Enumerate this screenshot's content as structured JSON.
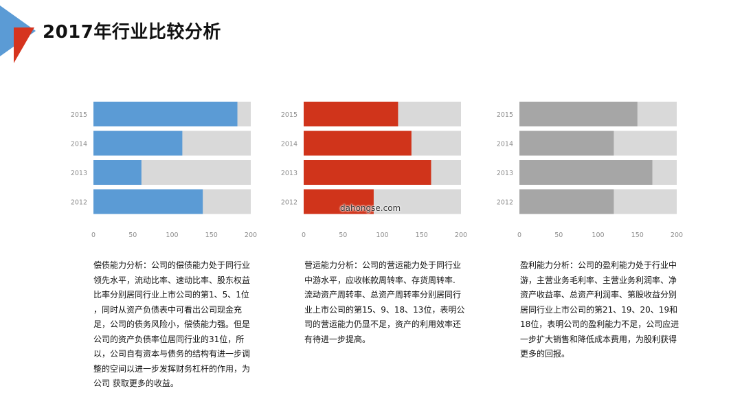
{
  "header": {
    "title": "2017年行业比较分析",
    "logo_colors": {
      "blue": "#5b9bd5",
      "red": "#d6341e"
    }
  },
  "watermark": "dahongse.com",
  "chart_data": [
    {
      "type": "bar",
      "orientation": "horizontal",
      "categories": [
        "2015",
        "2014",
        "2013",
        "2012"
      ],
      "values": [
        183,
        113,
        61,
        139
      ],
      "xlim": [
        0,
        200
      ],
      "xticks": [
        "0",
        "50",
        "100",
        "150",
        "200"
      ],
      "bar_color": "#5b9bd5",
      "track_color": "#d9d9d9",
      "grid": false,
      "legend": "none"
    },
    {
      "type": "bar",
      "orientation": "horizontal",
      "categories": [
        "2015",
        "2014",
        "2013",
        "2012"
      ],
      "values": [
        120,
        137,
        162,
        89
      ],
      "xlim": [
        0,
        200
      ],
      "xticks": [
        "0",
        "50",
        "100",
        "150",
        "200"
      ],
      "bar_color": "#d0341b",
      "track_color": "#d9d9d9",
      "grid": false,
      "legend": "none"
    },
    {
      "type": "bar",
      "orientation": "horizontal",
      "categories": [
        "2015",
        "2014",
        "2013",
        "2012"
      ],
      "values": [
        150,
        120,
        169,
        120
      ],
      "xlim": [
        0,
        200
      ],
      "xticks": [
        "0",
        "50",
        "100",
        "150",
        "200"
      ],
      "bar_color": "#a6a6a6",
      "track_color": "#d9d9d9",
      "grid": false,
      "legend": "none"
    }
  ],
  "descriptions": [
    "偿债能力分析：公司的偿债能力处于同行业领先水平，流动比率、速动比率、股东权益比率分别居同行业上市公司的第1、5、1位 ，同时从资产负债表中可看出公司现金充足，公司的债务风险小，偿债能力强。但是公司的资产负债率位居同行业的31位，所以，公司自有资本与债务的结构有进一步调整的空间以进一步发挥财务杠杆的作用，为公司 获取更多的收益。",
    "营运能力分析：公司的营运能力处于同行业中游水平，应收帐款周转率、存货周转率. 流动资产周转率、总资产周转率分别居同行业上市公司的第15、9、18、13位，表明公司的营运能力仍显不足，资产的利用效率还有待进一步提高。",
    "盈利能力分析：公司的盈利能力处于行业中游，主营业务毛利率、主营业务利润率、净资产收益率、总资产利润率、第股收益分别居同行业上市公司的第21、19、20、19和18位，表明公司的盈利能力不足，公司应进一步扩大销售和降低成本费用，为股利获得更多的回报。"
  ]
}
